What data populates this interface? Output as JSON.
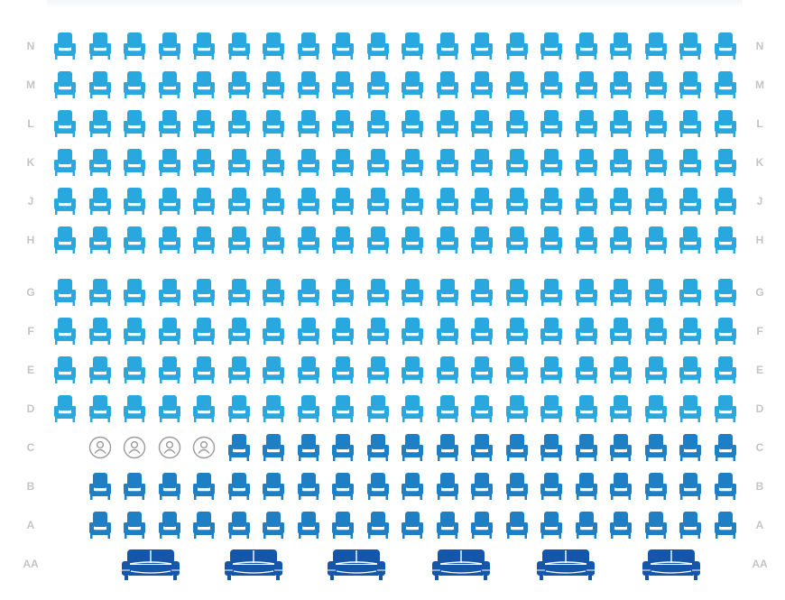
{
  "seat_map": {
    "colors": {
      "standard": "#29a8e0",
      "premium": "#1f7fc4",
      "sofa": "#1656a8",
      "accessible": "#9a9a9a",
      "row_label": "#c4c4c4"
    },
    "rows": [
      {
        "label": "N",
        "type": "standard",
        "seats": 20,
        "first": 1
      },
      {
        "label": "M",
        "type": "standard",
        "seats": 20,
        "first": 1
      },
      {
        "label": "L",
        "type": "standard",
        "seats": 20,
        "first": 1
      },
      {
        "label": "K",
        "type": "standard",
        "seats": 20,
        "first": 1
      },
      {
        "label": "J",
        "type": "standard",
        "seats": 20,
        "first": 1
      },
      {
        "label": "H",
        "type": "standard",
        "seats": 20,
        "first": 1
      },
      {
        "label": "G",
        "type": "standard",
        "seats": 20,
        "first": 1
      },
      {
        "label": "F",
        "type": "standard",
        "seats": 20,
        "first": 1
      },
      {
        "label": "E",
        "type": "standard",
        "seats": 20,
        "first": 1
      },
      {
        "label": "D",
        "type": "standard",
        "seats": 20,
        "first": 1
      },
      {
        "label": "C",
        "type": "premium",
        "seats": 15,
        "first": 6,
        "accessible": 4,
        "accessible_first": 2
      },
      {
        "label": "B",
        "type": "premium",
        "seats": 19,
        "first": 2
      },
      {
        "label": "A",
        "type": "premium",
        "seats": 19,
        "first": 2
      },
      {
        "label": "AA",
        "type": "sofa",
        "seats": 6,
        "first": 1
      }
    ]
  }
}
